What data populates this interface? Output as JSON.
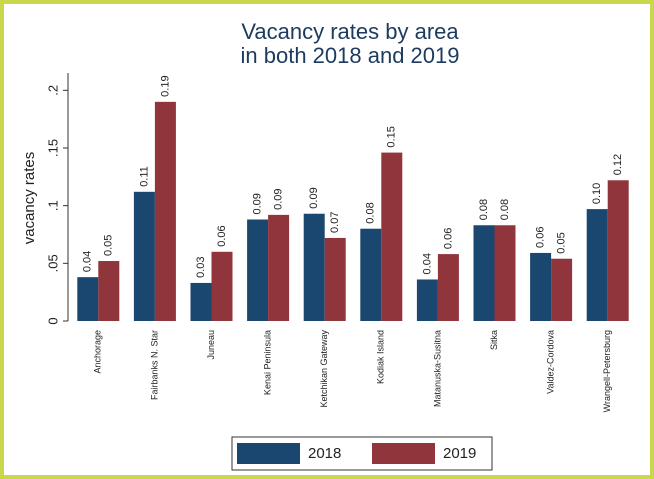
{
  "chart_data": {
    "type": "bar",
    "title": [
      "Vacancy rates by area",
      "in both 2018 and 2019"
    ],
    "y_label": "vacancy rates",
    "categories": [
      "Anchorage",
      "Fairbanks N. Star",
      "Juneau",
      "Kenai Peninsula",
      "Ketchikan Gateway",
      "Kodiak Island",
      "Matanuska-Susitna",
      "Sitka",
      "Valdez-Cordova",
      "Wrangell-Petersburg"
    ],
    "series": [
      {
        "name": "2018",
        "color": "#1a476f",
        "values": [
          0.038,
          0.112,
          0.033,
          0.088,
          0.093,
          0.08,
          0.036,
          0.083,
          0.059,
          0.097
        ],
        "value_labels": [
          "0.04",
          "0.11",
          "0.03",
          "0.09",
          "0.09",
          "0.08",
          "0.04",
          "0.08",
          "0.06",
          "0.10"
        ]
      },
      {
        "name": "2019",
        "color": "#90353b",
        "values": [
          0.052,
          0.19,
          0.06,
          0.092,
          0.072,
          0.146,
          0.058,
          0.083,
          0.054,
          0.122
        ],
        "value_labels": [
          "0.05",
          "0.19",
          "0.06",
          "0.09",
          "0.07",
          "0.15",
          "0.06",
          "0.08",
          "0.05",
          "0.12"
        ]
      }
    ],
    "ylim": [
      0,
      0.215
    ],
    "yticks": [
      0,
      {
        "value": 0.05,
        "label": ".05"
      },
      {
        "value": 0.1,
        "label": ".1"
      },
      {
        "value": 0.15,
        "label": ".15"
      },
      {
        "value": 0.2,
        "label": ".2"
      }
    ],
    "grid": false,
    "legend": "bottom"
  }
}
